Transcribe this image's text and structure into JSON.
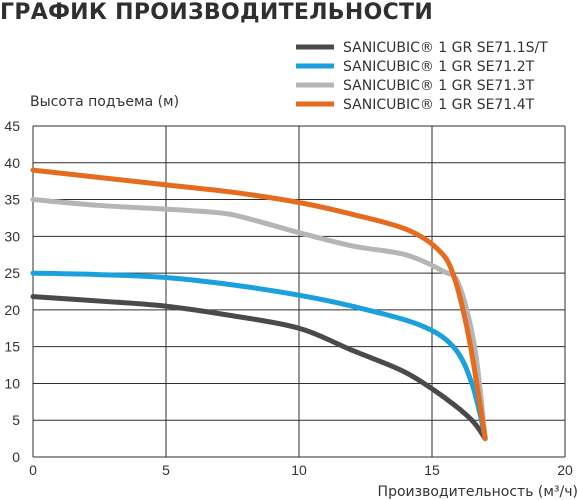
{
  "page": {
    "title": "ГРАФИК ПРОИЗВОДИТЕЛЬНОСТИ"
  },
  "chart_data": {
    "type": "line",
    "title": "ГРАФИК ПРОИЗВОДИТЕЛЬНОСТИ",
    "xlabel": "Производительность (м³/ч)",
    "ylabel": "Высота подъема (м)",
    "xlim": [
      0,
      20
    ],
    "ylim": [
      0,
      45
    ],
    "xticks": [
      0,
      5,
      10,
      15,
      20
    ],
    "yticks": [
      0,
      5,
      10,
      15,
      20,
      25,
      30,
      35,
      40,
      45
    ],
    "grid": true,
    "legend_position": "top-right",
    "series": [
      {
        "name": "SANICUBIC® 1 GR SE71.1S/T",
        "color": "#4a4a4a",
        "x": [
          0,
          2.5,
          5,
          7.5,
          10,
          12,
          14,
          15.5,
          16.5,
          17
        ],
        "y": [
          21.8,
          21.2,
          20.5,
          19.2,
          17.5,
          14.5,
          11.5,
          8,
          5,
          2.5
        ]
      },
      {
        "name": "SANICUBIC® 1 GR SE71.2T",
        "color": "#1aa0dc",
        "x": [
          0,
          2.5,
          5,
          7.5,
          10,
          12,
          14.5,
          15.8,
          16.5,
          17
        ],
        "y": [
          25,
          24.8,
          24.4,
          23.4,
          22,
          20.5,
          18,
          15,
          10,
          2.7
        ]
      },
      {
        "name": "SANICUBIC® 1 GR SE71.3T",
        "color": "#b5b5b5",
        "x": [
          0,
          2.5,
          5,
          7,
          8,
          10,
          12,
          14,
          15.4,
          16,
          16.6,
          17
        ],
        "y": [
          35,
          34.2,
          33.7,
          33.2,
          32.5,
          30.5,
          28.7,
          27.5,
          25.3,
          23.5,
          15,
          2.5
        ]
      },
      {
        "name": "SANICUBIC® 1 GR SE71.4T",
        "color": "#e56b1f",
        "x": [
          0,
          2.5,
          5,
          7.5,
          10,
          12,
          14,
          15.2,
          15.8,
          16.4,
          17
        ],
        "y": [
          39,
          38,
          37,
          36,
          34.6,
          33,
          31,
          28.3,
          24.8,
          16,
          2.5
        ]
      }
    ]
  }
}
